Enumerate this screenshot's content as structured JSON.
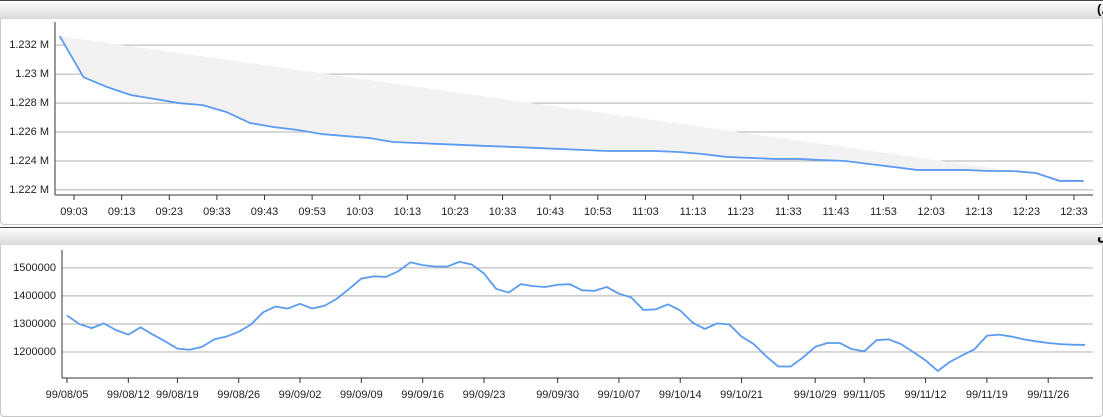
{
  "chart_data": [
    {
      "type": "line",
      "title": "شاخص کل (آخرین روز معاملاتی)",
      "grid": true,
      "shade": true,
      "x": [
        "09:00",
        "09:05",
        "09:10",
        "09:15",
        "09:20",
        "09:25",
        "09:30",
        "09:35",
        "09:40",
        "09:45",
        "09:50",
        "09:55",
        "10:00",
        "10:05",
        "10:10",
        "10:15",
        "10:20",
        "10:25",
        "10:30",
        "10:35",
        "10:40",
        "10:45",
        "10:50",
        "10:55",
        "11:00",
        "11:05",
        "11:10",
        "11:15",
        "11:20",
        "11:25",
        "11:30",
        "11:35",
        "11:40",
        "11:45",
        "11:50",
        "11:55",
        "12:00",
        "12:05",
        "12:10",
        "12:15",
        "12:20",
        "12:25",
        "12:30",
        "12:35"
      ],
      "xlim": [
        "08:59",
        "12:37"
      ],
      "xticks": [
        "09:03",
        "09:13",
        "09:23",
        "09:33",
        "09:43",
        "09:53",
        "10:03",
        "10:13",
        "10:23",
        "10:33",
        "10:43",
        "10:53",
        "11:03",
        "11:13",
        "11:23",
        "11:33",
        "11:43",
        "11:53",
        "12:03",
        "12:13",
        "12:23",
        "12:33"
      ],
      "ylim": [
        1221650,
        1233600
      ],
      "yticks": [
        {
          "value": 1222000,
          "label": "1.222 M"
        },
        {
          "value": 1224000,
          "label": "1.224 M"
        },
        {
          "value": 1226000,
          "label": "1.226 M"
        },
        {
          "value": 1228000,
          "label": "1.228 M"
        },
        {
          "value": 1230000,
          "label": "1.23 M"
        },
        {
          "value": 1232000,
          "label": "1.232 M"
        }
      ],
      "series": [
        {
          "color": "#5b9bf0",
          "values": [
            1232620,
            1229790,
            1229100,
            1228550,
            1228280,
            1228000,
            1227860,
            1227380,
            1226620,
            1226340,
            1226140,
            1225860,
            1225720,
            1225590,
            1225310,
            1225240,
            1225170,
            1225100,
            1225030,
            1224970,
            1224900,
            1224830,
            1224760,
            1224690,
            1224690,
            1224690,
            1224620,
            1224480,
            1224280,
            1224210,
            1224140,
            1224140,
            1224070,
            1224000,
            1223790,
            1223590,
            1223380,
            1223380,
            1223380,
            1223310,
            1223310,
            1223170,
            1222620,
            1222620
          ]
        }
      ]
    },
    {
      "type": "line",
      "title": "نمودار شاخص",
      "grid": true,
      "categories": [
        "99/08/05",
        null,
        null,
        null,
        null,
        "99/08/12",
        null,
        null,
        null,
        "99/08/19",
        null,
        null,
        null,
        null,
        "99/08/26",
        null,
        null,
        null,
        null,
        "99/09/02",
        null,
        null,
        null,
        null,
        "99/09/09",
        null,
        null,
        null,
        null,
        "99/09/16",
        null,
        null,
        null,
        null,
        "99/09/23",
        null,
        null,
        null,
        null,
        null,
        "99/09/30",
        null,
        null,
        null,
        null,
        "99/10/07",
        null,
        null,
        null,
        null,
        "99/10/14",
        null,
        null,
        null,
        null,
        "99/10/21",
        null,
        null,
        null,
        null,
        null,
        "99/10/29",
        null,
        null,
        null,
        "99/11/05",
        null,
        null,
        null,
        null,
        "99/11/12",
        null,
        null,
        null,
        null,
        "99/11/19",
        null,
        null,
        null,
        null,
        "99/11/26",
        null,
        null,
        null
      ],
      "ylim": [
        1107000,
        1564000
      ],
      "yticks": [
        1200000,
        1300000,
        1400000,
        1500000
      ],
      "series": [
        {
          "color": "#5b9bf0",
          "values": [
            1330000,
            1300000,
            1285000,
            1302000,
            1278000,
            1262000,
            1288000,
            1262000,
            1238000,
            1212000,
            1208000,
            1218000,
            1245000,
            1255000,
            1272000,
            1298000,
            1342000,
            1362000,
            1355000,
            1372000,
            1355000,
            1365000,
            1390000,
            1425000,
            1462000,
            1470000,
            1468000,
            1488000,
            1520000,
            1510000,
            1505000,
            1505000,
            1522000,
            1512000,
            1480000,
            1425000,
            1412000,
            1442000,
            1435000,
            1432000,
            1440000,
            1442000,
            1420000,
            1418000,
            1432000,
            1408000,
            1395000,
            1350000,
            1352000,
            1370000,
            1348000,
            1305000,
            1282000,
            1302000,
            1298000,
            1255000,
            1228000,
            1185000,
            1148000,
            1148000,
            1180000,
            1218000,
            1232000,
            1232000,
            1210000,
            1202000,
            1242000,
            1245000,
            1228000,
            1200000,
            1170000,
            1132000,
            1165000,
            1188000,
            1210000,
            1258000,
            1262000,
            1255000,
            1245000,
            1238000,
            1232000,
            1228000,
            1226000,
            1225000
          ]
        }
      ]
    }
  ]
}
